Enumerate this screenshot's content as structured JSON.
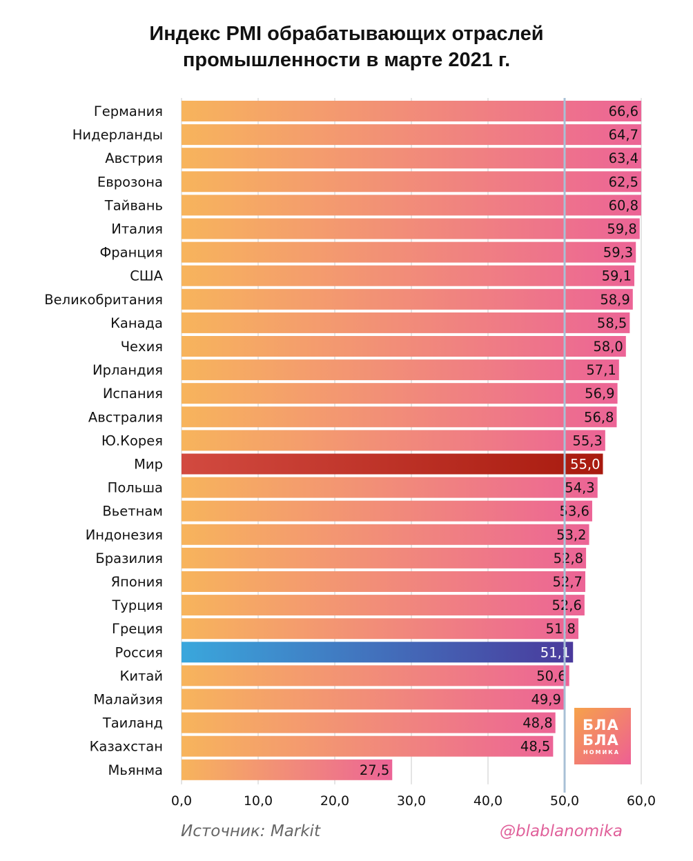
{
  "title_line1": "Индекс PMI обрабатывающих отраслей",
  "title_line2": "промышленности в марте 2021 г.",
  "source": "Источник: Markit",
  "handle": "@blablanomika",
  "logo": {
    "line1": "БЛА",
    "line2": "БЛА",
    "line3": "НОМИКА"
  },
  "colors": {
    "bar_start": "#f7b45c",
    "bar_end": "#ec6496",
    "world_start": "#d24a40",
    "world_end": "#a81a0e",
    "russia_start": "#3aa7dc",
    "russia_end": "#4a3a9c",
    "reference_line": "#a8c0d6",
    "grid": "#c8c8c8"
  },
  "chart_data": {
    "type": "bar",
    "orientation": "horizontal",
    "title": "Индекс PMI обрабатывающих отраслей промышленности в марте 2021 г.",
    "categories": [
      "Германия",
      "Нидерланды",
      "Австрия",
      "Еврозона",
      "Тайвань",
      "Италия",
      "Франция",
      "США",
      "Великобритания",
      "Канада",
      "Чехия",
      "Ирландия",
      "Испания",
      "Австралия",
      "Ю.Корея",
      "Мир",
      "Польша",
      "Вьетнам",
      "Индонезия",
      "Бразилия",
      "Япония",
      "Турция",
      "Греция",
      "Россия",
      "Китай",
      "Малайзия",
      "Таиланд",
      "Казахстан",
      "Мьянма"
    ],
    "values": [
      66.6,
      64.7,
      63.4,
      62.5,
      60.8,
      59.8,
      59.3,
      59.1,
      58.9,
      58.5,
      58.0,
      57.1,
      56.9,
      56.8,
      55.3,
      55.0,
      54.3,
      53.6,
      53.2,
      52.8,
      52.7,
      52.6,
      51.8,
      51.1,
      50.6,
      49.9,
      48.8,
      48.5,
      27.5
    ],
    "value_labels": [
      "66,6",
      "64,7",
      "63,4",
      "62,5",
      "60,8",
      "59,8",
      "59,3",
      "59,1",
      "58,9",
      "58,5",
      "58,0",
      "57,1",
      "56,9",
      "56,8",
      "55,3",
      "55,0",
      "54,3",
      "53,6",
      "53,2",
      "52,8",
      "52,7",
      "52,6",
      "51,8",
      "51,1",
      "50,6",
      "49,9",
      "48,8",
      "48,5",
      "27,5"
    ],
    "highlight": {
      "Мир": "world",
      "Россия": "russia"
    },
    "xlim": [
      0,
      60
    ],
    "x_display_max": 60,
    "xticks": [
      0,
      10,
      20,
      30,
      40,
      50,
      60
    ],
    "xtick_labels": [
      "0,0",
      "10,0",
      "20,0",
      "30,0",
      "40,0",
      "50,0",
      "60,0"
    ],
    "reference_line": 50,
    "grid": true
  }
}
